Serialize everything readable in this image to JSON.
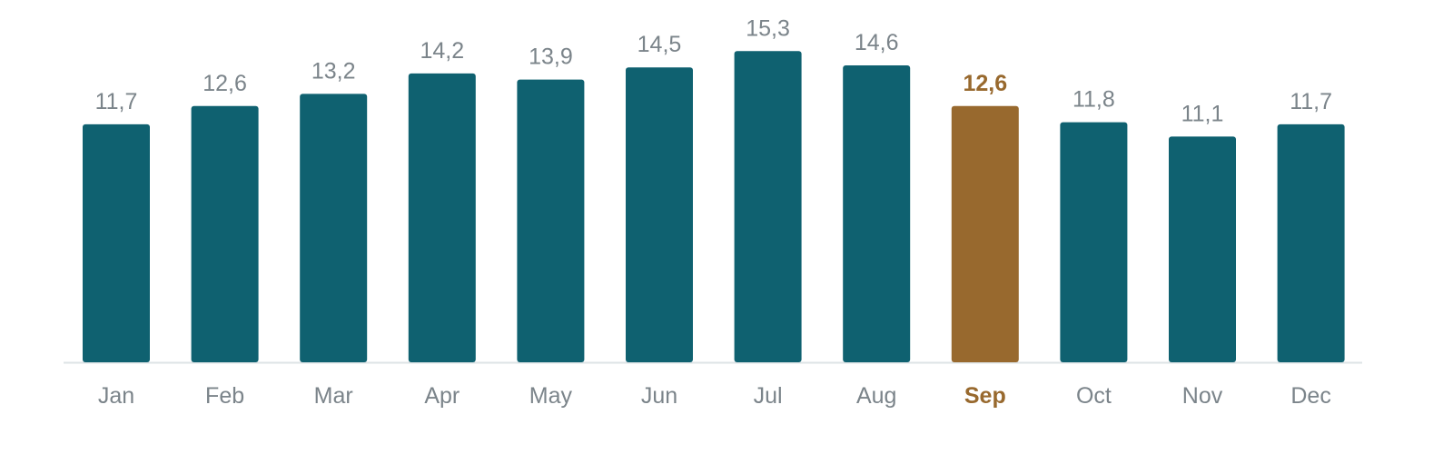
{
  "chart_data": {
    "type": "bar",
    "categories": [
      "Jan",
      "Feb",
      "Mar",
      "Apr",
      "May",
      "Jun",
      "Jul",
      "Aug",
      "Sep",
      "Oct",
      "Nov",
      "Dec"
    ],
    "values": [
      11.7,
      12.6,
      13.2,
      14.2,
      13.9,
      14.5,
      15.3,
      14.6,
      12.6,
      11.8,
      11.1,
      11.7
    ],
    "value_labels": [
      "11,7",
      "12,6",
      "13,2",
      "14,2",
      "13,9",
      "14,5",
      "15,3",
      "14,6",
      "12,6",
      "11,8",
      "11,1",
      "11,7"
    ],
    "color": "#0f6170",
    "highlight": "Sep",
    "highlight_color": "#98692e"
  }
}
